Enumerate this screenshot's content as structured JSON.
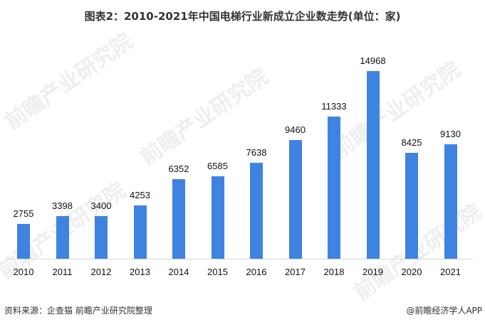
{
  "title": "图表2：2010-2021年中国电梯行业新成立企业数走势(单位：家)",
  "source": "资料来源：企查猫 前瞻产业研究院整理",
  "credit": "@前瞻经济学人APP",
  "watermark": "前瞻产业研究院",
  "colors": {
    "bar": "#3f83e0",
    "axis": "#d9d9d9"
  },
  "chart_data": {
    "type": "bar",
    "title": "图表2：2010-2021年中国电梯行业新成立企业数走势(单位：家)",
    "xlabel": "",
    "ylabel": "单位：家",
    "categories": [
      "2010",
      "2011",
      "2012",
      "2013",
      "2014",
      "2015",
      "2016",
      "2017",
      "2018",
      "2019",
      "2020",
      "2021"
    ],
    "values": [
      2755,
      3398,
      3400,
      4253,
      6352,
      6585,
      7638,
      9460,
      11333,
      14968,
      8425,
      9130
    ],
    "ylim": [
      0,
      16000
    ],
    "grid": false,
    "legend": "none",
    "data_labels": true
  }
}
